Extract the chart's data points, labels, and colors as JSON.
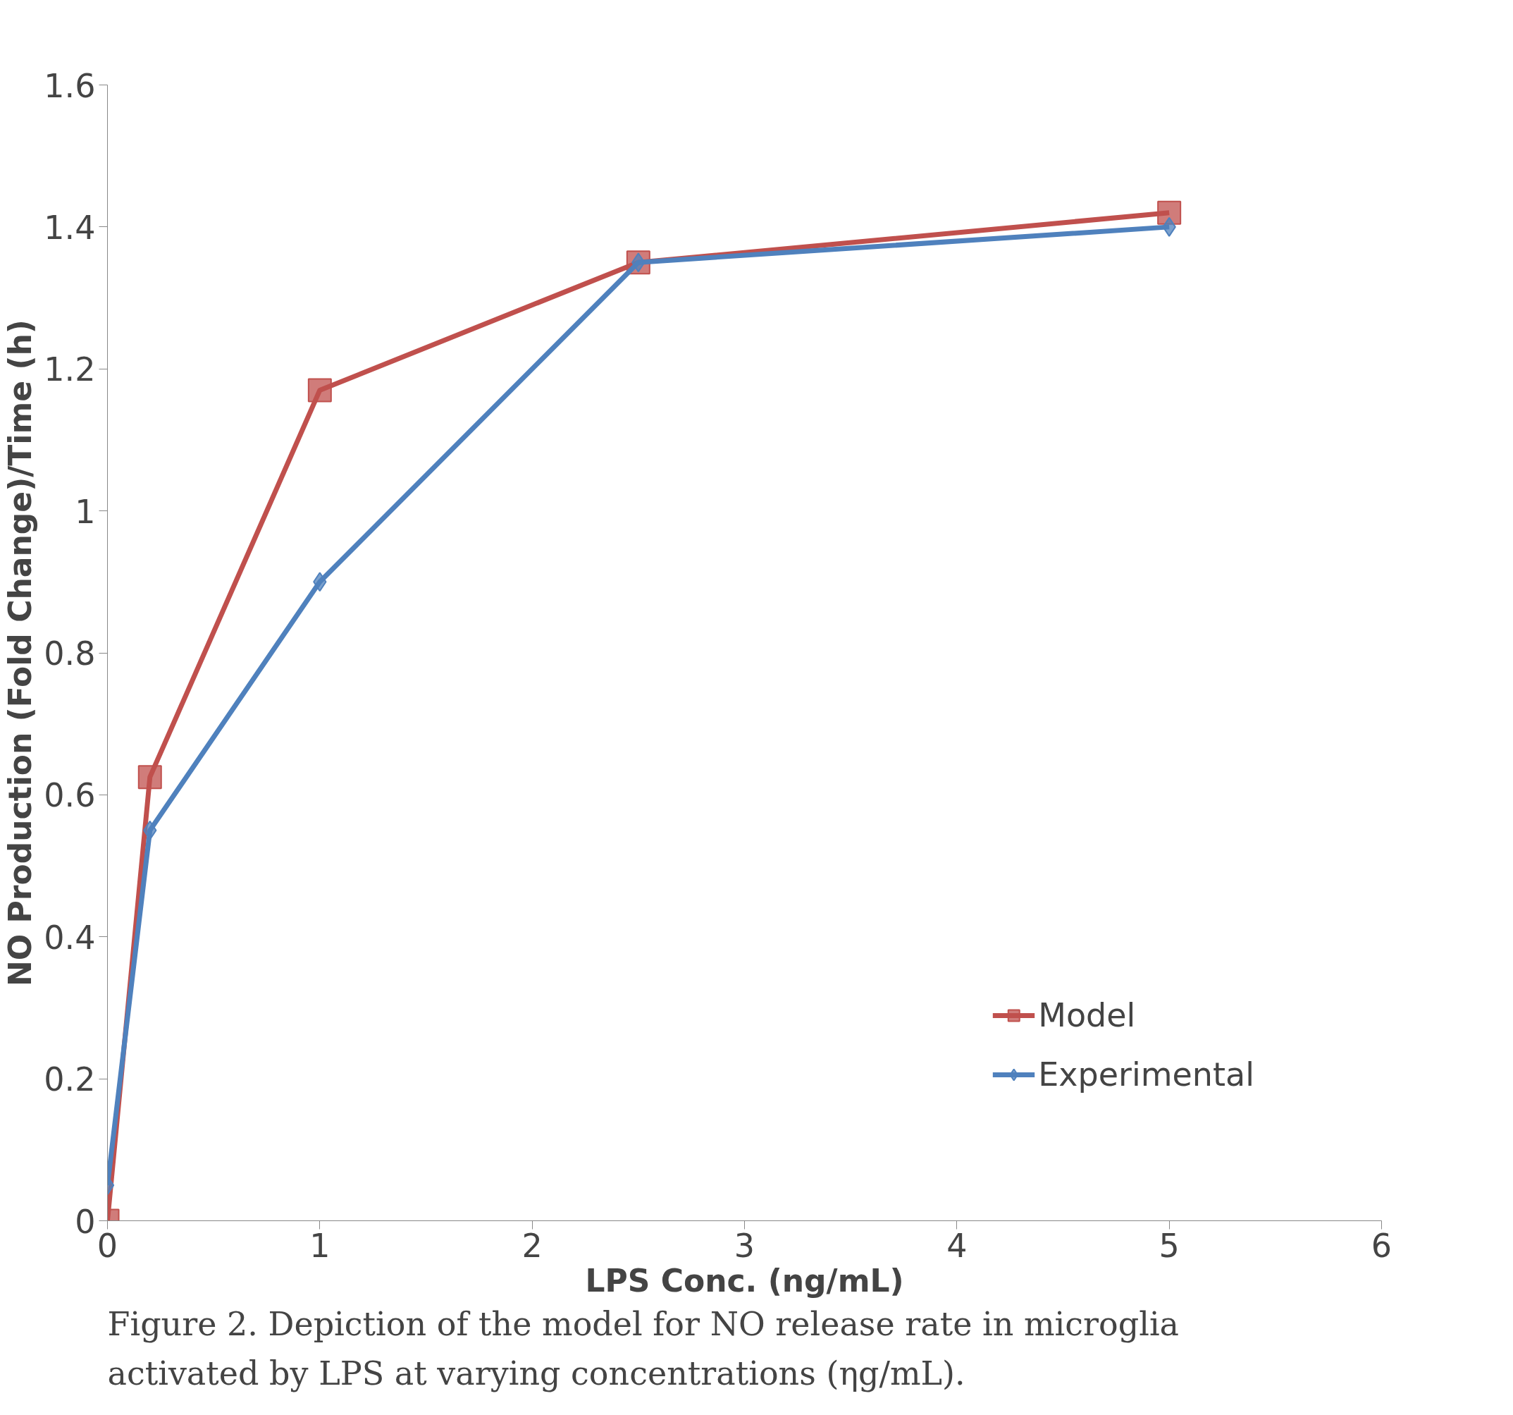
{
  "chart_data": {
    "type": "line",
    "xlabel": "LPS Conc. (ng/mL)",
    "ylabel": "NO Production (Fold Change)/Time (h)",
    "x": [
      0,
      0.2,
      1,
      2.5,
      5
    ],
    "series": [
      {
        "name": "Model",
        "color": "#c0504d",
        "marker": "square",
        "values": [
          0,
          0.625,
          1.17,
          1.35,
          1.42
        ]
      },
      {
        "name": "Experimental",
        "color": "#4f81bd",
        "marker": "diamond",
        "values": [
          0.05,
          0.55,
          0.9,
          1.35,
          1.4
        ]
      }
    ],
    "xlim": [
      0,
      6
    ],
    "xticks": [
      0,
      1,
      2,
      3,
      4,
      5,
      6
    ],
    "ylim": [
      0,
      1.6
    ],
    "yticks": [
      0,
      0.2,
      0.4,
      0.6,
      0.8,
      1,
      1.2,
      1.4,
      1.6
    ],
    "grid": false,
    "legend": "bottom right",
    "line_style": "solid",
    "annotations": [
      "Figure 2. Depiction of the model for NO release rate in microglia activated by LPS at varying concentrations (ηg/mL)."
    ]
  }
}
